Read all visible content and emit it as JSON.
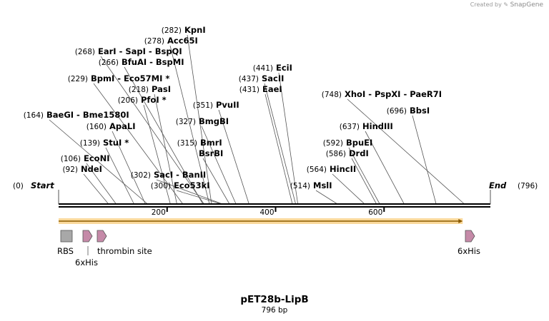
{
  "credit": {
    "prefix": "Created by",
    "brand": "SnapGene"
  },
  "title": "pET28b-LipB",
  "length_label": "796 bp",
  "length": 796,
  "start_label": "Start",
  "start_pos": "(0)",
  "end_label": "End",
  "end_pos": "(796)",
  "ticks": [
    200,
    400,
    600
  ],
  "sites": [
    {
      "pos": 92,
      "name": "NdeI",
      "star": false
    },
    {
      "pos": 106,
      "name": "EcoNI",
      "star": false
    },
    {
      "pos": 139,
      "name": "StuI",
      "star": true
    },
    {
      "pos": 160,
      "name": "ApaLI",
      "star": false
    },
    {
      "pos": 164,
      "name": "BaeGI",
      "star": false,
      "group": [
        "BaeGI",
        "Bme1580I"
      ]
    },
    {
      "pos": 206,
      "name": "PfoI",
      "star": true
    },
    {
      "pos": 218,
      "name": "PasI",
      "star": false
    },
    {
      "pos": 229,
      "name": "BpmI",
      "star": false,
      "group": [
        "BpmI",
        "Eco57MI *"
      ]
    },
    {
      "pos": 266,
      "name": "BfuAI",
      "star": false,
      "group": [
        "BfuAI",
        "BspMI"
      ]
    },
    {
      "pos": 268,
      "name": "EarI",
      "star": false,
      "group": [
        "EarI",
        "SapI",
        "BspQI"
      ]
    },
    {
      "pos": 278,
      "name": "Acc65I",
      "star": false
    },
    {
      "pos": 282,
      "name": "KpnI",
      "star": false
    },
    {
      "pos": 300,
      "name": "Eco53kI",
      "star": false
    },
    {
      "pos": 302,
      "name": "SacI",
      "star": false,
      "group": [
        "SacI",
        "BanII"
      ]
    },
    {
      "pos": 315,
      "name": "BmrI",
      "star": false,
      "stack": [
        "BmrI",
        "BsrBI"
      ]
    },
    {
      "pos": 327,
      "name": "BmgBI",
      "star": false
    },
    {
      "pos": 351,
      "name": "PvuII",
      "star": false
    },
    {
      "pos": 431,
      "name": "EaeI",
      "star": false
    },
    {
      "pos": 437,
      "name": "SacII",
      "star": false
    },
    {
      "pos": 441,
      "name": "EciI",
      "star": false
    },
    {
      "pos": 514,
      "name": "MslI",
      "star": false
    },
    {
      "pos": 564,
      "name": "HincII",
      "star": false
    },
    {
      "pos": 586,
      "name": "DrdI",
      "star": false
    },
    {
      "pos": 592,
      "name": "BpuEI",
      "star": false
    },
    {
      "pos": 637,
      "name": "HindIII",
      "star": false
    },
    {
      "pos": 696,
      "name": "BbsI",
      "star": false
    },
    {
      "pos": 748,
      "name": "XhoI",
      "star": false,
      "group": [
        "XhoI",
        "PspXI",
        "PaeR7I"
      ]
    }
  ],
  "features": [
    {
      "name": "RBS",
      "start": 0,
      "end": 22,
      "shape": "box",
      "color": "#a8a8a8"
    },
    {
      "name": "6xHis",
      "start": 45,
      "end": 62,
      "shape": "arrow",
      "color": "#c58aa8"
    },
    {
      "name": "thrombin site",
      "start": 71,
      "end": 89,
      "shape": "arrow",
      "color": "#c58aa8"
    },
    {
      "name": "6xHis",
      "start": 750,
      "end": 768,
      "shape": "arrow",
      "color": "#c58aa8"
    }
  ],
  "orf": {
    "start": 0,
    "end": 745,
    "color": "#f5b94a",
    "line_color": "#8a5a00"
  },
  "colors": {
    "backbone": "#000000",
    "site_line": "#555555"
  }
}
